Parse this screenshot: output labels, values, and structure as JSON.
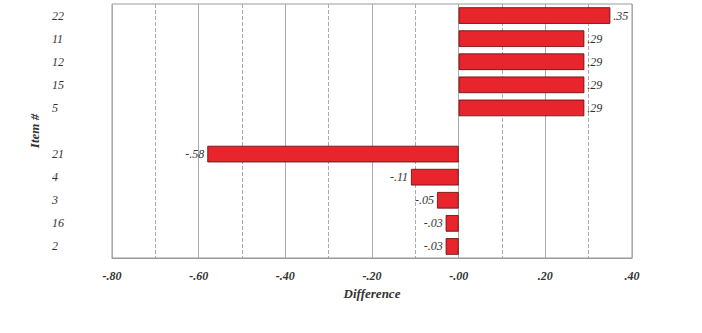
{
  "chart_data": {
    "type": "bar",
    "orientation": "horizontal",
    "xlabel": "Difference",
    "ylabel": "Item #",
    "categories": [
      "22",
      "11",
      "12",
      "15",
      "5",
      null,
      "21",
      "4",
      "3",
      "16",
      "2"
    ],
    "values": [
      0.35,
      0.29,
      0.29,
      0.29,
      0.29,
      null,
      -0.58,
      -0.11,
      -0.05,
      -0.03,
      -0.03
    ],
    "value_labels": [
      ".35",
      ".29",
      ".29",
      ".29",
      ".29",
      null,
      "-.58",
      "-.11",
      "-.05",
      "-.03",
      "-.03"
    ],
    "color": "#e8242c",
    "data_labels": true,
    "grid": true,
    "xlim": [
      -0.8,
      0.4
    ],
    "xticks": [
      {
        "value": -0.8,
        "label": "-.80"
      },
      {
        "value": -0.6,
        "label": "-.60"
      },
      {
        "value": -0.4,
        "label": "-.40"
      },
      {
        "value": -0.2,
        "label": "-.20"
      },
      {
        "value": 0,
        "label": "-.00"
      },
      {
        "value": 0.2,
        "label": ".20"
      },
      {
        "value": 0.4,
        "label": ".40"
      }
    ]
  }
}
